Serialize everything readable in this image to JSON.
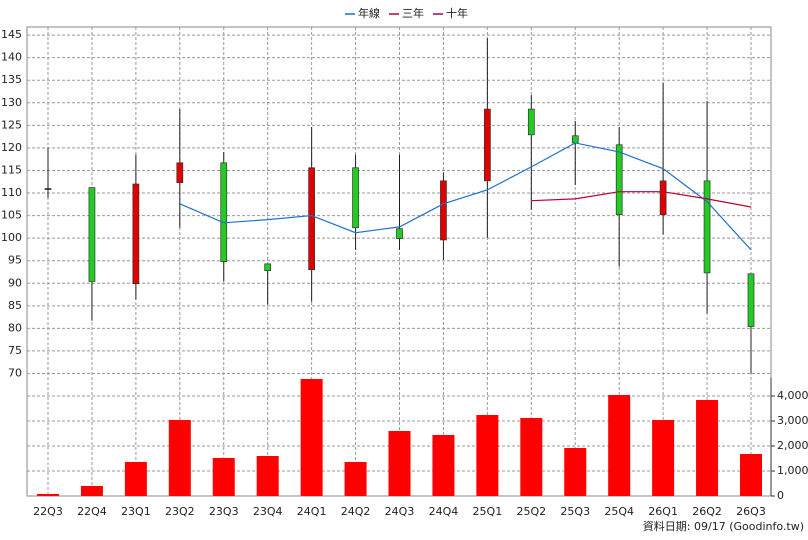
{
  "chart_data": {
    "type": "candlestick",
    "categories": [
      "22Q3",
      "22Q4",
      "23Q1",
      "23Q2",
      "23Q3",
      "23Q4",
      "24Q1",
      "24Q2",
      "24Q3",
      "24Q4",
      "25Q1",
      "25Q2",
      "25Q3",
      "25Q4",
      "26Q1",
      "26Q2",
      "26Q3"
    ],
    "open": [
      111,
      111.2,
      89.9,
      112.3,
      116.7,
      94.3,
      93.0,
      115.6,
      102.1,
      99.6,
      112.7,
      128.6,
      122.7,
      120.7,
      105.2,
      112.7,
      92.1
    ],
    "high": [
      120,
      111.2,
      118.5,
      128.6,
      119.1,
      94.3,
      124.6,
      118.5,
      118.5,
      114.5,
      144.3,
      131.7,
      126.0,
      124.6,
      134.4,
      130.4,
      92.1
    ],
    "low": [
      108.9,
      81.7,
      86.4,
      102.3,
      90.4,
      85.3,
      85.9,
      97.4,
      97.4,
      95.2,
      100.1,
      106.3,
      111.8,
      93.7,
      100.8,
      83.3,
      70
    ],
    "close": [
      111,
      90.4,
      112.0,
      116.7,
      94.8,
      92.8,
      115.6,
      102.3,
      99.9,
      112.7,
      128.6,
      122.9,
      121.1,
      105.2,
      112.7,
      92.3,
      80.4
    ],
    "up_color": "#e00000",
    "down_color": "#22cc22",
    "series": [
      {
        "name": "年線",
        "color": "#1f6fd0",
        "values": [
          null,
          null,
          null,
          107.6,
          103.4,
          104.1,
          105.0,
          101.2,
          102.5,
          107.6,
          110.7,
          115.8,
          121.1,
          119.1,
          115.4,
          108.1,
          97.4
        ]
      },
      {
        "name": "三年",
        "color": "#c00030",
        "values": [
          null,
          null,
          null,
          null,
          null,
          null,
          null,
          null,
          null,
          null,
          null,
          108.3,
          108.7,
          110.3,
          110.3,
          108.7,
          106.9
        ]
      },
      {
        "name": "十年",
        "color": "#a0006a",
        "values": [
          null,
          null,
          null,
          null,
          null,
          null,
          null,
          null,
          null,
          null,
          null,
          null,
          null,
          null,
          null,
          null,
          null
        ]
      }
    ],
    "volume": {
      "color": "#ff0000",
      "axis": "y2",
      "values": [
        80,
        400,
        1360,
        3040,
        1520,
        1600,
        4680,
        1360,
        2600,
        2440,
        3240,
        3120,
        1920,
        4040,
        3040,
        3840,
        1680
      ]
    },
    "ylim": [
      69,
      146.8
    ],
    "yticks": [
      70,
      75,
      80,
      85,
      90,
      95,
      100,
      105,
      110,
      115,
      120,
      125,
      130,
      135,
      140,
      145
    ],
    "y2lim": [
      0,
      4720
    ],
    "y2ticks": [
      0,
      {
        "value": 1000,
        "label": "1,000"
      },
      {
        "value": 2000,
        "label": "2,000"
      },
      {
        "value": 3000,
        "label": "3,000"
      },
      {
        "value": 4000,
        "label": "4,000"
      }
    ],
    "grid": true,
    "legend": "top",
    "note": "資料日期: 09/17  (Goodinfo.tw)"
  }
}
